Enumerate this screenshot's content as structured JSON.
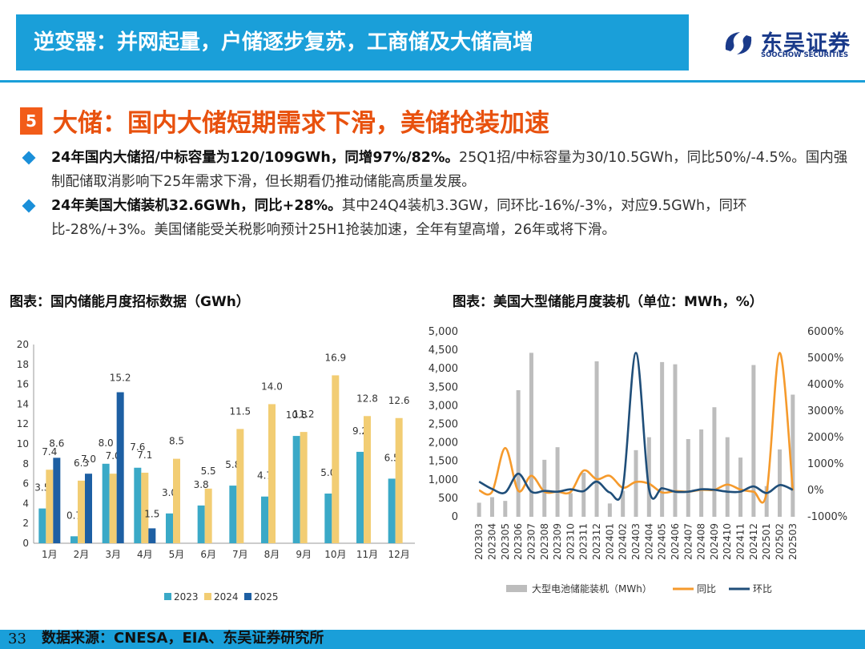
{
  "header": {
    "title": "逆变器：并网起量，户储逐步复苏，工商储及大储高增",
    "logo_cn": "东吴证券",
    "logo_en": "SOOCHOW SECURITIES"
  },
  "section": {
    "number": "5",
    "title": "大储：国内大储短期需求下滑，美储抢装加速"
  },
  "bullets": [
    {
      "bold": "24年国内大储招/中标容量为120/109GWh，同增97%/82%。",
      "text": "25Q1招/中标容量为30/10.5GWh，同比50%/-4.5%。国内强制配储取消影响下25年需求下滑，但长期看仍推动储能高质量发展。"
    },
    {
      "bold": "24年美国大储装机32.6GWh，同比+28%。",
      "text": "其中24Q4装机3.3GW，同环比-16%/-3%，对应9.5GWh，同环比-28%/+3%。美国储能受关税影响预计25H1抢装加速，全年有望高增，26年或将下滑。"
    }
  ],
  "charts": {
    "left_title": "图表：国内储能月度招标数据（GWh）",
    "right_title": "图表：美国大型储能月度装机（单位：MWh，%）"
  },
  "chart_data": [
    {
      "type": "bar",
      "title": "图表：国内储能月度招标数据（GWh）",
      "categories": [
        "1月",
        "2月",
        "3月",
        "4月",
        "5月",
        "6月",
        "7月",
        "8月",
        "9月",
        "10月",
        "11月",
        "12月"
      ],
      "series": [
        {
          "name": "2023",
          "color": "#3aa9c7",
          "values": [
            3.5,
            0.7,
            8.0,
            7.6,
            3.0,
            3.8,
            5.8,
            4.7,
            10.8,
            5.0,
            9.2,
            6.5
          ]
        },
        {
          "name": "2024",
          "color": "#f2cd73",
          "values": [
            7.4,
            6.3,
            7.0,
            7.1,
            8.5,
            5.5,
            11.5,
            14.0,
            11.2,
            16.9,
            12.8,
            12.6
          ]
        },
        {
          "name": "2025",
          "color": "#1d5fa3",
          "values": [
            8.6,
            7.0,
            15.2,
            1.5,
            null,
            null,
            null,
            null,
            null,
            null,
            null,
            null
          ]
        }
      ],
      "ylim": [
        0,
        20
      ],
      "yticks": [
        "0",
        "2",
        "4",
        "6",
        "8",
        "10",
        "12",
        "14",
        "16",
        "18",
        "20"
      ],
      "legend_position": "bottom"
    },
    {
      "type": "bar+line",
      "title": "图表：美国大型储能月度装机（单位：MWh，%）",
      "categories": [
        "202303",
        "202304",
        "202305",
        "202306",
        "202307",
        "202308",
        "202309",
        "202310",
        "202311",
        "202312",
        "202401",
        "202402",
        "202403",
        "202404",
        "202405",
        "202406",
        "202407",
        "202408",
        "202409",
        "202410",
        "202411",
        "202412",
        "202501",
        "202502",
        "202503"
      ],
      "bars": {
        "name": "大型电池储能装机（MWh）",
        "color": "#bdbdbd",
        "values": [
          380,
          530,
          430,
          3420,
          4430,
          1540,
          1880,
          640,
          1190,
          4200,
          360,
          700,
          1800,
          2150,
          4180,
          4120,
          2100,
          2360,
          2960,
          2150,
          1600,
          4100,
          830,
          1820,
          3300
        ]
      },
      "lines": [
        {
          "name": "同比",
          "color": "#f59a2c",
          "values": [
            0,
            -50,
            1600,
            -20,
            550,
            -50,
            -50,
            -60,
            750,
            420,
            550,
            100,
            320,
            250,
            -80,
            -30,
            -50,
            20,
            20,
            220,
            30,
            -50,
            -80,
            5200,
            0
          ]
        },
        {
          "name": "环比",
          "color": "#1f4e79",
          "values": [
            330,
            50,
            -80,
            630,
            -50,
            -20,
            -50,
            40,
            -30,
            330,
            -80,
            100,
            5200,
            50,
            80,
            -50,
            -50,
            40,
            20,
            -50,
            -50,
            150,
            -100,
            200,
            20
          ]
        }
      ],
      "y_left_lim": [
        0,
        5000
      ],
      "y_left_ticks": [
        "0",
        "500",
        "1,000",
        "1,500",
        "2,000",
        "2,500",
        "3,000",
        "3,500",
        "4,000",
        "4,500",
        "5,000"
      ],
      "y_right_lim": [
        -1000,
        6000
      ],
      "y_right_ticks": [
        "-1000%",
        "0%",
        "1000%",
        "2000%",
        "3000%",
        "4000%",
        "5000%",
        "6000%"
      ],
      "legend_position": "bottom"
    }
  ],
  "footer": {
    "page_number": "33",
    "source": "数据来源：CNESA，EIA、东吴证券研究所"
  }
}
